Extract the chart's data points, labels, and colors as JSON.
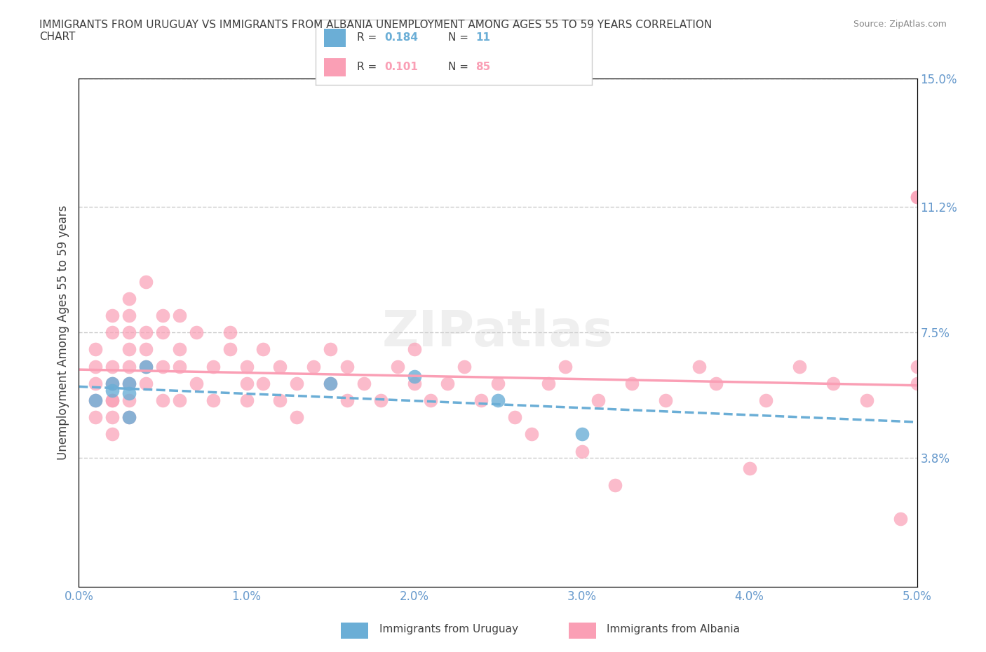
{
  "title": "IMMIGRANTS FROM URUGUAY VS IMMIGRANTS FROM ALBANIA UNEMPLOYMENT AMONG AGES 55 TO 59 YEARS CORRELATION\nCHART",
  "source": "Source: ZipAtlas.com",
  "xlabel": "",
  "ylabel": "Unemployment Among Ages 55 to 59 years",
  "xlim": [
    0.0,
    0.05
  ],
  "ylim": [
    0.0,
    0.15
  ],
  "yticks": [
    0.038,
    0.075,
    0.112,
    0.15
  ],
  "ytick_labels": [
    "3.8%",
    "7.5%",
    "11.2%",
    "15.0%"
  ],
  "xticks": [
    0.0,
    0.01,
    0.02,
    0.03,
    0.04,
    0.05
  ],
  "xtick_labels": [
    "0.0%",
    "1.0%",
    "2.0%",
    "3.0%",
    "4.0%",
    "5.0%"
  ],
  "uruguay_color": "#6baed6",
  "albania_color": "#fa9fb5",
  "uruguay_R": 0.184,
  "uruguay_N": 11,
  "albania_R": 0.101,
  "albania_N": 85,
  "legend_label_uruguay": "Immigrants from Uruguay",
  "legend_label_albania": "Immigrants from Albania",
  "watermark": "ZIPatlas",
  "background_color": "#ffffff",
  "grid_color": "#cccccc",
  "title_color": "#404040",
  "axis_label_color": "#404040",
  "tick_color": "#6699cc",
  "uruguay_scatter_x": [
    0.001,
    0.002,
    0.002,
    0.003,
    0.003,
    0.003,
    0.004,
    0.015,
    0.02,
    0.025,
    0.03
  ],
  "uruguay_scatter_y": [
    0.055,
    0.06,
    0.058,
    0.057,
    0.06,
    0.05,
    0.065,
    0.06,
    0.062,
    0.055,
    0.045
  ],
  "albania_scatter_x": [
    0.001,
    0.001,
    0.001,
    0.001,
    0.001,
    0.002,
    0.002,
    0.002,
    0.002,
    0.002,
    0.002,
    0.002,
    0.002,
    0.003,
    0.003,
    0.003,
    0.003,
    0.003,
    0.003,
    0.003,
    0.003,
    0.004,
    0.004,
    0.004,
    0.004,
    0.004,
    0.005,
    0.005,
    0.005,
    0.005,
    0.006,
    0.006,
    0.006,
    0.006,
    0.007,
    0.007,
    0.008,
    0.008,
    0.009,
    0.009,
    0.01,
    0.01,
    0.01,
    0.011,
    0.011,
    0.012,
    0.012,
    0.013,
    0.013,
    0.014,
    0.015,
    0.015,
    0.016,
    0.016,
    0.017,
    0.018,
    0.019,
    0.02,
    0.02,
    0.021,
    0.022,
    0.023,
    0.024,
    0.025,
    0.026,
    0.027,
    0.028,
    0.029,
    0.03,
    0.031,
    0.032,
    0.033,
    0.035,
    0.037,
    0.038,
    0.04,
    0.041,
    0.043,
    0.045,
    0.047,
    0.049,
    0.05,
    0.05,
    0.05,
    0.05
  ],
  "albania_scatter_y": [
    0.055,
    0.06,
    0.05,
    0.065,
    0.07,
    0.045,
    0.08,
    0.055,
    0.075,
    0.065,
    0.06,
    0.05,
    0.055,
    0.07,
    0.08,
    0.085,
    0.075,
    0.065,
    0.055,
    0.06,
    0.05,
    0.09,
    0.075,
    0.065,
    0.06,
    0.07,
    0.08,
    0.055,
    0.065,
    0.075,
    0.07,
    0.055,
    0.08,
    0.065,
    0.075,
    0.06,
    0.065,
    0.055,
    0.07,
    0.075,
    0.065,
    0.06,
    0.055,
    0.07,
    0.06,
    0.065,
    0.055,
    0.06,
    0.05,
    0.065,
    0.06,
    0.07,
    0.055,
    0.065,
    0.06,
    0.055,
    0.065,
    0.06,
    0.07,
    0.055,
    0.06,
    0.065,
    0.055,
    0.06,
    0.05,
    0.045,
    0.06,
    0.065,
    0.04,
    0.055,
    0.03,
    0.06,
    0.055,
    0.065,
    0.06,
    0.035,
    0.055,
    0.065,
    0.06,
    0.055,
    0.02,
    0.115,
    0.065,
    0.06,
    0.115
  ]
}
